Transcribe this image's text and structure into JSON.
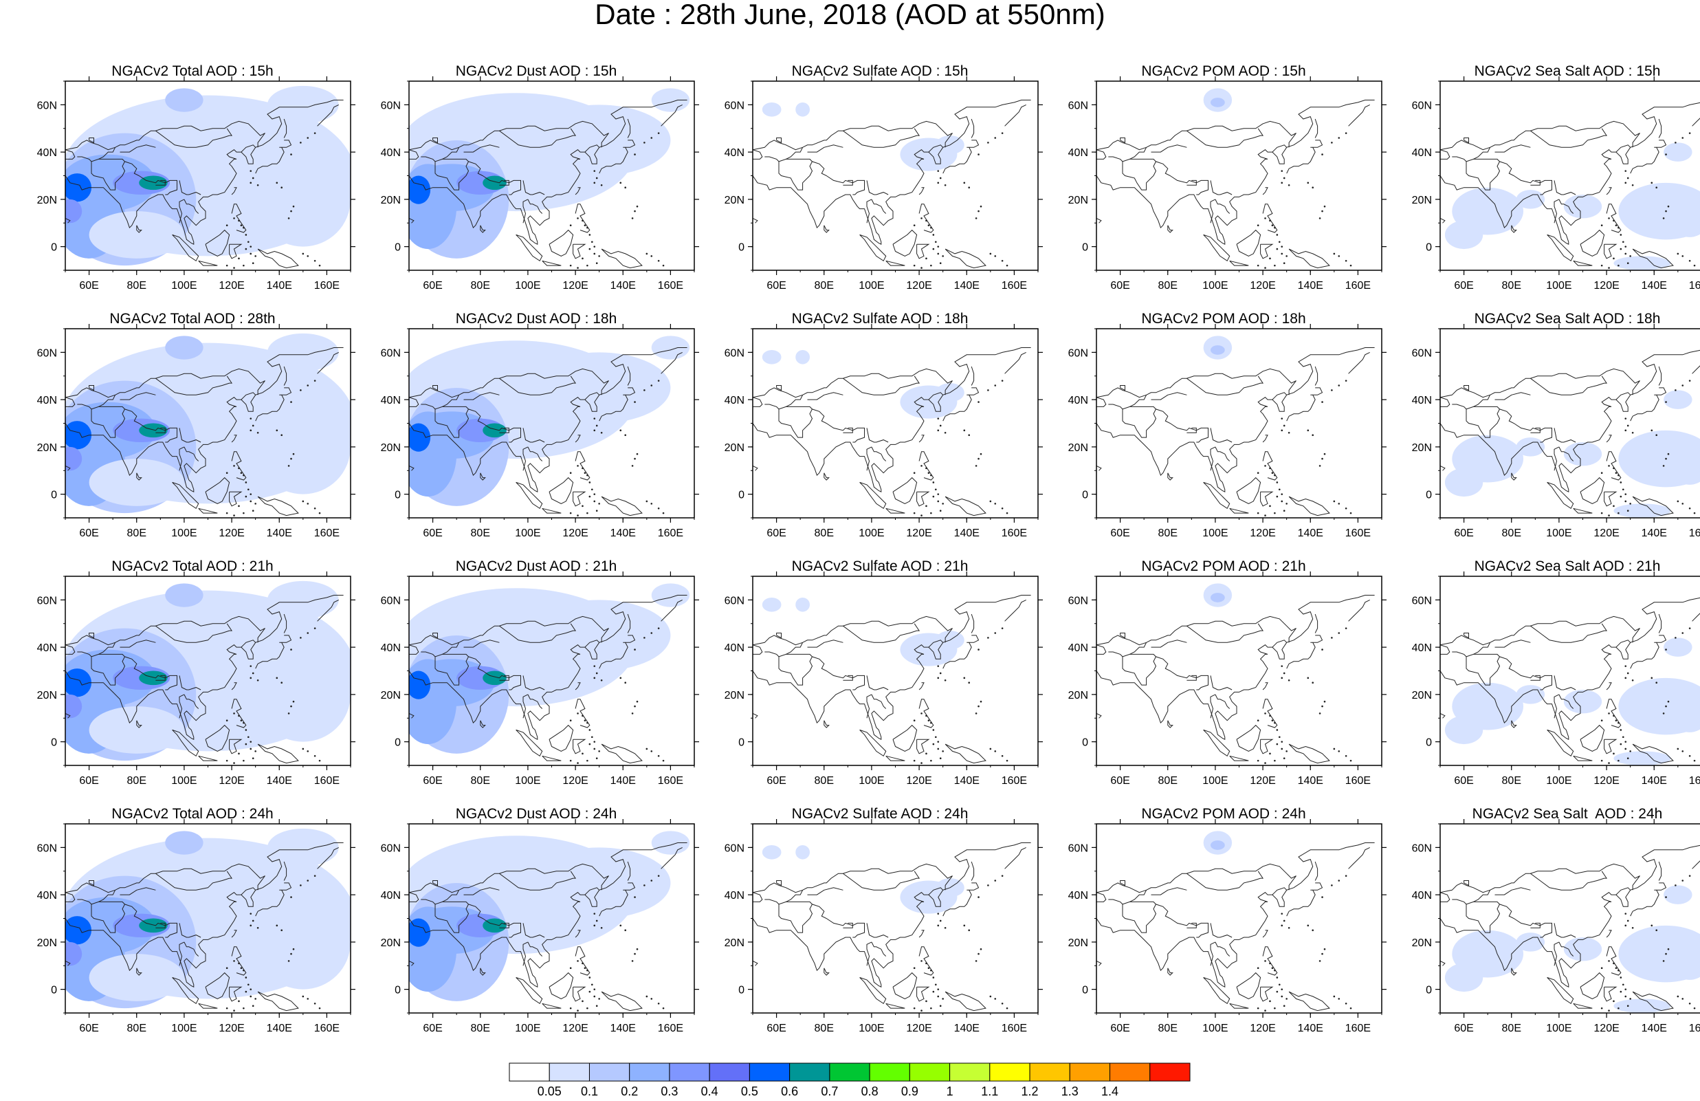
{
  "title": "Date : 28th June, 2018 (AOD at 550nm)",
  "axes": {
    "lon_ticks": [
      60,
      80,
      100,
      120,
      140,
      160
    ],
    "lon_labels": [
      "60E",
      "80E",
      "100E",
      "120E",
      "140E",
      "160E"
    ],
    "lat_ticks": [
      60,
      40,
      20,
      0
    ],
    "lat_labels": [
      "60N",
      "40N",
      "20N",
      "0"
    ],
    "lon_range": [
      50,
      170
    ],
    "lat_range": [
      -10,
      70
    ]
  },
  "colorbar": {
    "labels": [
      "0.05",
      "0.1",
      "0.2",
      "0.3",
      "0.4",
      "0.5",
      "0.6",
      "0.7",
      "0.8",
      "0.9",
      "1",
      "1.1",
      "1.2",
      "1.3",
      "1.4"
    ],
    "colors": [
      "#ffffff",
      "#d6e2ff",
      "#b5c9ff",
      "#8eb2ff",
      "#7f96ff",
      "#6370f8",
      "#0063ff",
      "#009696",
      "#00c633",
      "#63ff00",
      "#96ff00",
      "#c6ff33",
      "#ffff00",
      "#ffc600",
      "#ffa000",
      "#ff7c00",
      "#ff1900"
    ]
  },
  "panels": [
    {
      "title": "NGACv2 Total AOD : 15h",
      "type": "total"
    },
    {
      "title": "NGACv2 Dust AOD : 15h",
      "type": "dust"
    },
    {
      "title": "NGACv2 Sulfate AOD : 15h",
      "type": "sulfate"
    },
    {
      "title": "NGACv2 POM AOD : 15h",
      "type": "pom"
    },
    {
      "title": "NGACv2 Sea Salt AOD : 15h",
      "type": "seasalt"
    },
    {
      "title": "NGACv2 Total AOD : 28th",
      "type": "total"
    },
    {
      "title": "NGACv2 Dust AOD : 18h",
      "type": "dust"
    },
    {
      "title": "NGACv2 Sulfate AOD : 18h",
      "type": "sulfate"
    },
    {
      "title": "NGACv2 POM AOD : 18h",
      "type": "pom"
    },
    {
      "title": "NGACv2 Sea Salt AOD : 18h",
      "type": "seasalt"
    },
    {
      "title": "NGACv2 Total AOD : 21h",
      "type": "total"
    },
    {
      "title": "NGACv2 Dust AOD : 21h",
      "type": "dust"
    },
    {
      "title": "NGACv2 Sulfate AOD : 21h",
      "type": "sulfate"
    },
    {
      "title": "NGACv2 POM AOD : 21h",
      "type": "pom"
    },
    {
      "title": "NGACv2 Sea Salt AOD : 21h",
      "type": "seasalt"
    },
    {
      "title": "NGACv2 Total AOD : 24h",
      "type": "total"
    },
    {
      "title": "NGACv2 Dust AOD : 24h",
      "type": "dust"
    },
    {
      "title": "NGACv2 Sulfate AOD : 24h",
      "type": "sulfate"
    },
    {
      "title": "NGACv2 POM AOD : 24h",
      "type": "pom"
    },
    {
      "title": "NGACv2 Sea Salt  AOD : 24h",
      "type": "seasalt"
    }
  ]
}
